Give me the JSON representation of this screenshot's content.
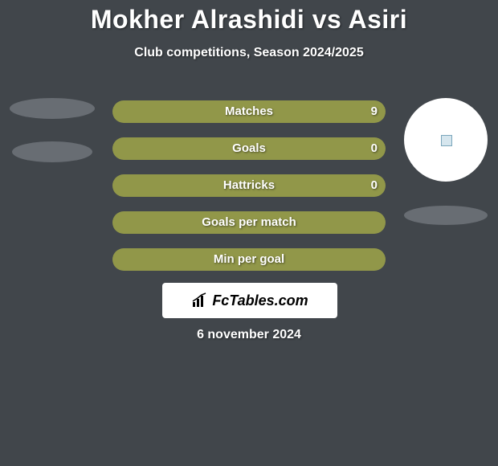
{
  "background_color": "#41464b",
  "title": "Mokher Alrashidi vs Asiri",
  "title_fontsize": 32,
  "title_color": "#ffffff",
  "subtitle": "Club competitions, Season 2024/2025",
  "subtitle_fontsize": 16,
  "subtitle_color": "#ffffff",
  "bar_color": "#919749",
  "ellipse_color": "#686d73",
  "text_color": "#ffffff",
  "rows": [
    {
      "label": "Matches",
      "left_value": "",
      "right_value": "9",
      "left_pct": 0,
      "right_pct": 100
    },
    {
      "label": "Goals",
      "left_value": "",
      "right_value": "0",
      "left_pct": 50,
      "right_pct": 50
    },
    {
      "label": "Hattricks",
      "left_value": "",
      "right_value": "0",
      "left_pct": 50,
      "right_pct": 50
    },
    {
      "label": "Goals per match",
      "left_value": "",
      "right_value": "",
      "left_pct": 50,
      "right_pct": 50
    },
    {
      "label": "Min per goal",
      "left_value": "",
      "right_value": "",
      "left_pct": 50,
      "right_pct": 50
    }
  ],
  "left_player": {
    "has_avatar": false
  },
  "right_player": {
    "has_avatar": true
  },
  "brand": "FcTables.com",
  "brand_box_bg": "#ffffff",
  "brand_text_color": "#000000",
  "date": "6 november 2024"
}
